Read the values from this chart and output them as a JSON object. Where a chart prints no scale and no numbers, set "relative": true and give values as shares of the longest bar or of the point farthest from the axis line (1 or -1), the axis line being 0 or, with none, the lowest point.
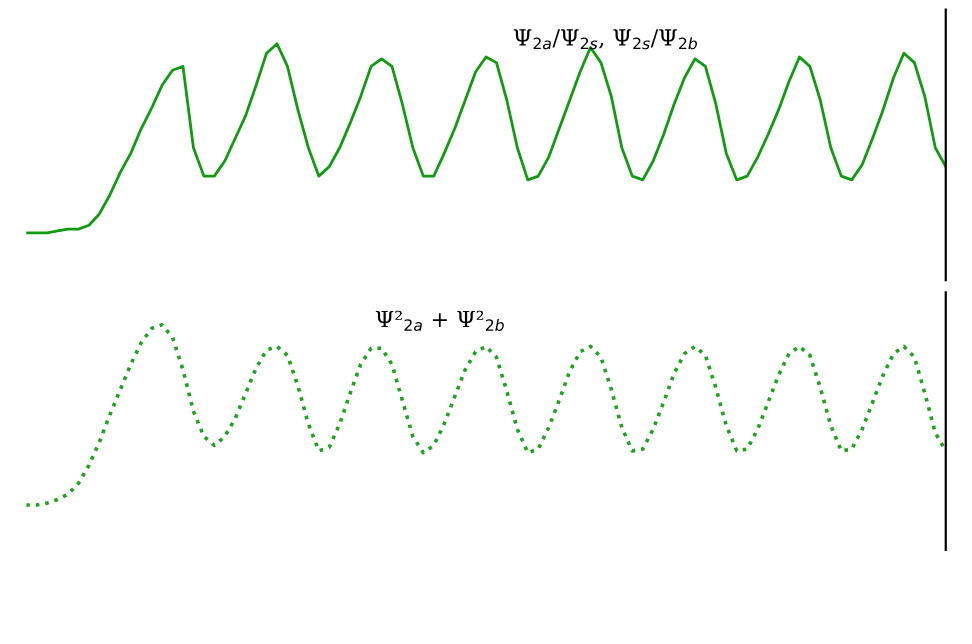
{
  "chart_data": [
    {
      "type": "line",
      "title": "Ψ$_{2a}$/Ψ$_{2s}$, Ψ$_{2s}$/Ψ$_{2b}$",
      "relative": true,
      "line_style": "solid",
      "categories": [
        null,
        null,
        null,
        null,
        null,
        null,
        null,
        null,
        null,
        null,
        null,
        null,
        null,
        null,
        null,
        null,
        null,
        null,
        null,
        null,
        null,
        null,
        null,
        null,
        null,
        null,
        null,
        null,
        null,
        null,
        null,
        null,
        null,
        null,
        null,
        null,
        null,
        null,
        null,
        null,
        null,
        null,
        null,
        null,
        null,
        null,
        null,
        null,
        null,
        null,
        null,
        null,
        null,
        null,
        null,
        null,
        null,
        null,
        null,
        null,
        null,
        null,
        null,
        null,
        null,
        null,
        null,
        null,
        null,
        null,
        null,
        null,
        null,
        null,
        null,
        null,
        null,
        null,
        null,
        null,
        null,
        null,
        null,
        null,
        null,
        null,
        null,
        null,
        null
      ],
      "series": [
        {
          "color": "#139a13",
          "values": [
            0,
            0,
            0,
            0.01,
            0.02,
            0.02,
            0.04,
            0.1,
            0.2,
            0.32,
            0.42,
            0.55,
            0.66,
            0.78,
            0.86,
            0.88,
            0.45,
            0.3,
            0.3,
            0.38,
            0.5,
            0.62,
            0.78,
            0.95,
            1.0,
            0.88,
            0.65,
            0.45,
            0.3,
            0.35,
            0.45,
            0.58,
            0.72,
            0.88,
            0.92,
            0.88,
            0.68,
            0.45,
            0.3,
            0.3,
            0.42,
            0.55,
            0.7,
            0.85,
            0.93,
            0.9,
            0.7,
            0.45,
            0.28,
            0.3,
            0.4,
            0.55,
            0.7,
            0.85,
            0.98,
            0.9,
            0.72,
            0.45,
            0.3,
            0.28,
            0.38,
            0.52,
            0.68,
            0.82,
            0.92,
            0.88,
            0.68,
            0.42,
            0.28,
            0.3,
            0.4,
            0.52,
            0.65,
            0.8,
            0.93,
            0.88,
            0.7,
            0.45,
            0.3,
            0.28,
            0.36,
            0.5,
            0.65,
            0.82,
            0.95,
            0.9,
            0.72,
            0.45,
            0.35
          ]
        }
      ]
    },
    {
      "type": "line",
      "title": "Ψ²$_{2a}$ + Ψ²$_{2b}$",
      "relative": true,
      "line_style": "dotted",
      "categories": [
        null,
        null,
        null,
        null,
        null,
        null,
        null,
        null,
        null,
        null,
        null,
        null,
        null,
        null,
        null,
        null,
        null,
        null,
        null,
        null,
        null,
        null,
        null,
        null,
        null,
        null,
        null,
        null,
        null,
        null,
        null,
        null,
        null,
        null,
        null,
        null,
        null,
        null,
        null,
        null,
        null,
        null,
        null,
        null,
        null,
        null,
        null,
        null,
        null,
        null,
        null,
        null,
        null,
        null,
        null,
        null,
        null,
        null,
        null,
        null,
        null,
        null,
        null,
        null,
        null,
        null,
        null,
        null,
        null,
        null,
        null,
        null,
        null,
        null,
        null,
        null,
        null,
        null,
        null,
        null,
        null,
        null,
        null,
        null,
        null,
        null,
        null,
        null,
        null
      ],
      "series": [
        {
          "color": "#22a022",
          "values": [
            0,
            0,
            0.01,
            0.03,
            0.06,
            0.12,
            0.22,
            0.35,
            0.5,
            0.64,
            0.78,
            0.9,
            0.98,
            1.0,
            0.93,
            0.75,
            0.52,
            0.38,
            0.33,
            0.38,
            0.48,
            0.62,
            0.76,
            0.86,
            0.88,
            0.83,
            0.66,
            0.45,
            0.3,
            0.32,
            0.45,
            0.62,
            0.78,
            0.87,
            0.87,
            0.78,
            0.58,
            0.38,
            0.29,
            0.33,
            0.45,
            0.6,
            0.75,
            0.85,
            0.88,
            0.82,
            0.63,
            0.42,
            0.29,
            0.31,
            0.43,
            0.58,
            0.74,
            0.85,
            0.88,
            0.82,
            0.64,
            0.43,
            0.3,
            0.31,
            0.42,
            0.57,
            0.73,
            0.84,
            0.88,
            0.83,
            0.65,
            0.44,
            0.3,
            0.31,
            0.42,
            0.57,
            0.72,
            0.84,
            0.88,
            0.83,
            0.65,
            0.44,
            0.3,
            0.31,
            0.42,
            0.57,
            0.72,
            0.84,
            0.88,
            0.82,
            0.62,
            0.4,
            0.3
          ]
        }
      ]
    }
  ]
}
